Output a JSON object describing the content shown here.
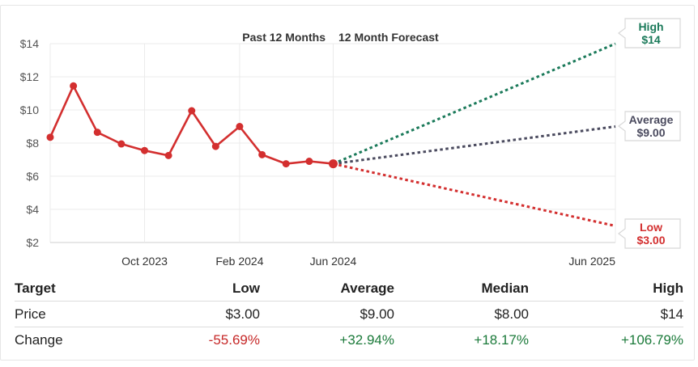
{
  "chart_data": {
    "type": "line",
    "header_past": "Past 12 Months",
    "header_forecast": "12 Month Forecast",
    "y_ticks": [
      "$14",
      "$12",
      "$10",
      "$8",
      "$6",
      "$4",
      "$2"
    ],
    "y_values": [
      14,
      12,
      10,
      8,
      6,
      4,
      2
    ],
    "ylim": [
      2,
      14
    ],
    "x_ticks": [
      "Oct 2023",
      "Feb 2024",
      "Jun 2024",
      "Jun 2025"
    ],
    "x_tick_dates": [
      "2023-10-01",
      "2024-02-01",
      "2024-06-01",
      "2025-06-01"
    ],
    "xlim": [
      "2023-06-01",
      "2025-06-01"
    ],
    "grid": true,
    "series": [
      {
        "color": "#d32f2f",
        "x": [
          "2023-06-01",
          "2023-07-01",
          "2023-08-01",
          "2023-09-01",
          "2023-10-01",
          "2023-11-01",
          "2023-12-01",
          "2024-01-01",
          "2024-02-01",
          "2024-03-01",
          "2024-04-01",
          "2024-05-01",
          "2024-06-01"
        ],
        "y": [
          8.35,
          11.45,
          8.65,
          7.95,
          7.55,
          7.25,
          9.95,
          7.8,
          9.0,
          7.3,
          6.75,
          6.9,
          6.75
        ]
      }
    ],
    "forecasts": [
      {
        "name": "High",
        "value_label": "$14",
        "value": 14,
        "color": "#1b7a5a"
      },
      {
        "name": "Average",
        "value_label": "$9.00",
        "value": 9.0,
        "color": "#4a4a5e"
      },
      {
        "name": "Low",
        "value_label": "$3.00",
        "value": 3.0,
        "color": "#d32f2f"
      }
    ],
    "forecast_start": {
      "x": "2024-06-01",
      "y": 6.75
    },
    "forecast_end": "2025-06-01"
  },
  "table": {
    "header": {
      "label": "Target",
      "low": "Low",
      "average": "Average",
      "median": "Median",
      "high": "High"
    },
    "price": {
      "label": "Price",
      "low": "$3.00",
      "average": "$9.00",
      "median": "$8.00",
      "high": "$14"
    },
    "change": {
      "label": "Change",
      "low": "-55.69%",
      "average": "+32.94%",
      "median": "+18.17%",
      "high": "+106.79%"
    }
  }
}
